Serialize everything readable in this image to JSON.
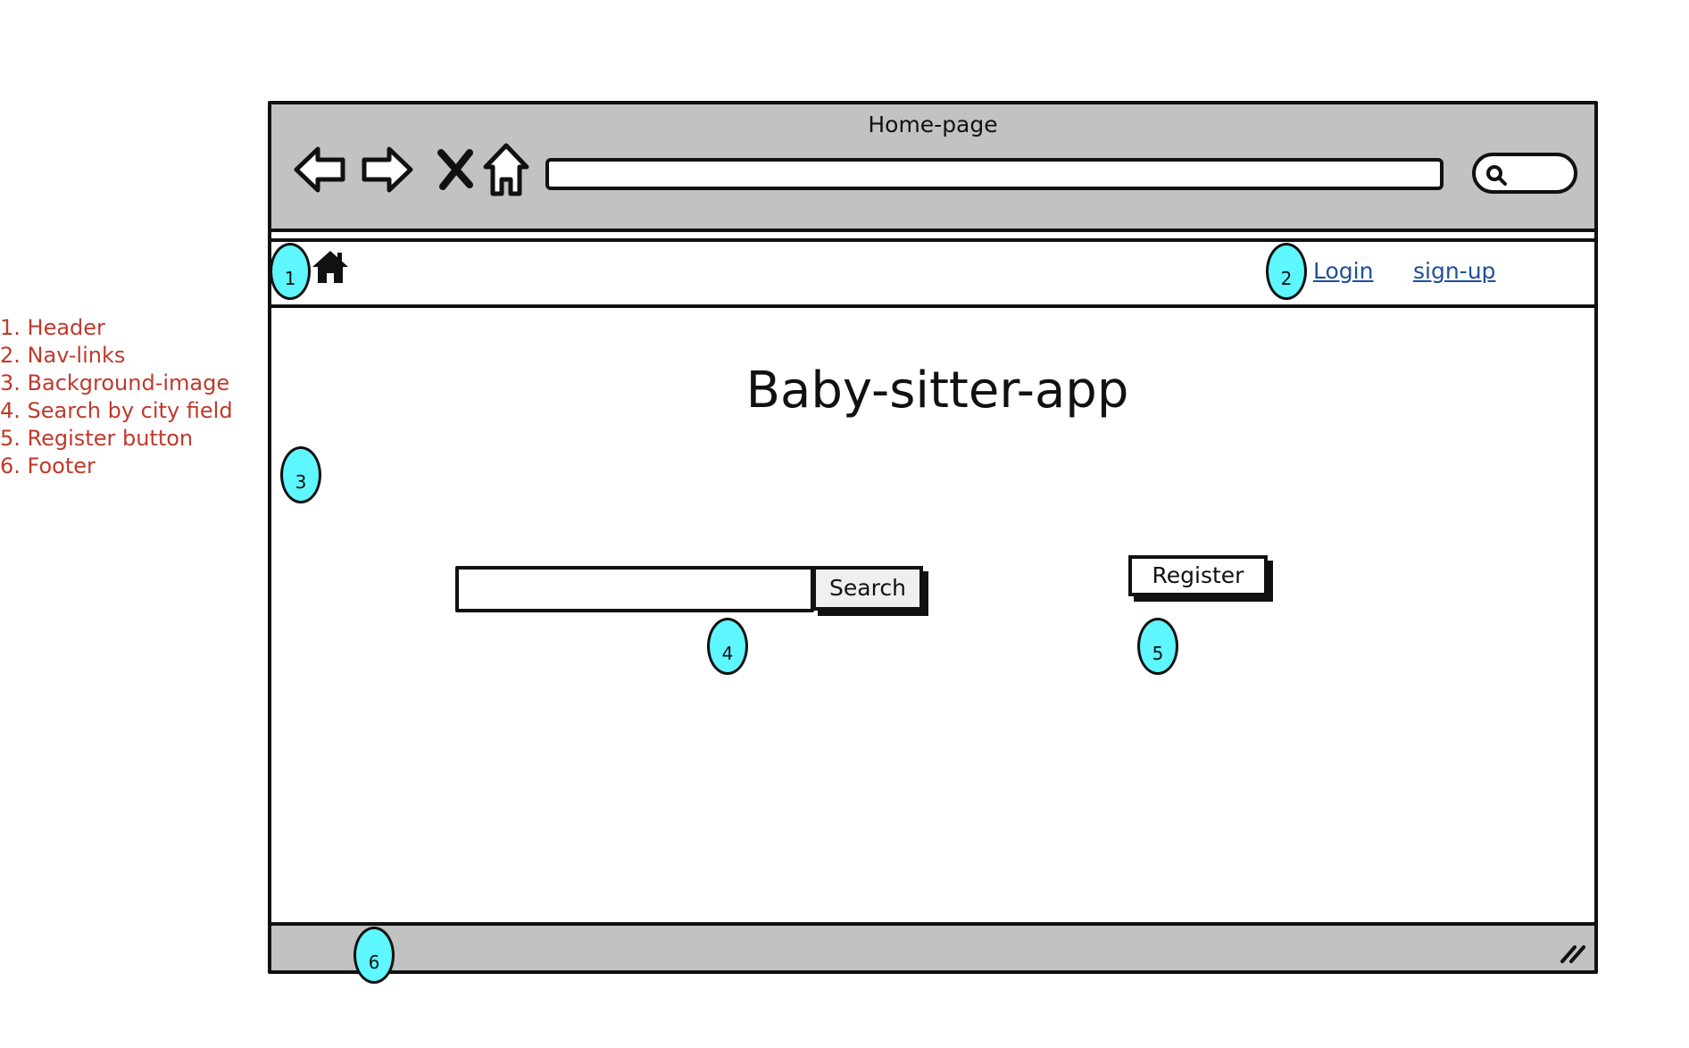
{
  "legend": [
    "1. Header",
    "2. Nav-links",
    "3. Background-image",
    "4. Search by city field",
    "5. Register button",
    "6. Footer"
  ],
  "browser": {
    "title": "Home-page",
    "icons": [
      "back-arrow-icon",
      "forward-arrow-icon",
      "stop-x-icon",
      "home-outline-icon",
      "magnifier-icon"
    ]
  },
  "header": {
    "home_icon": "home-icon",
    "links": {
      "login": "Login",
      "signup": "sign-up"
    },
    "link_color": "#1f4f99"
  },
  "main": {
    "title": "Baby-sitter-app",
    "search": {
      "value": "",
      "placeholder": "",
      "button_label": "Search"
    },
    "register_label": "Register"
  },
  "footer": {
    "resize_icon": "resize-grip-icon"
  },
  "markers": [
    "1",
    "2",
    "3",
    "4",
    "5",
    "6"
  ],
  "colors": {
    "chrome": "#c2c2c2",
    "marker": "#5ef6ff",
    "legend": "#c0392b"
  }
}
